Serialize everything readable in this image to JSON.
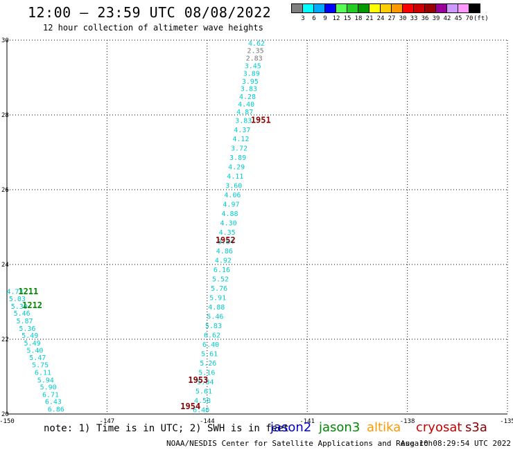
{
  "header": {
    "title": "12:00 – 23:59 UTC 08/08/2022",
    "subtitle": "12 hour collection of altimeter wave heights"
  },
  "legend": {
    "unit": "(ft)",
    "colors": [
      "#7f7f7f",
      "#00ffff",
      "#00aaff",
      "#0000ff",
      "#55ff55",
      "#22cc22",
      "#009900",
      "#ffff00",
      "#ffcc00",
      "#ff9900",
      "#ff0000",
      "#cc0000",
      "#990000",
      "#990099",
      "#cc99ff",
      "#ff99ff",
      "#000000"
    ],
    "labels": [
      "3",
      "6",
      "9",
      "12",
      "15",
      "18",
      "21",
      "24",
      "27",
      "30",
      "33",
      "36",
      "39",
      "42",
      "45",
      "70"
    ]
  },
  "chart_data": {
    "type": "scatter",
    "title": "12:00 – 23:59 UTC 08/08/2022",
    "subtitle": "12 hour collection of altimeter wave heights",
    "xlim": [
      -150,
      -135
    ],
    "ylim": [
      20,
      30
    ],
    "x_ticks": [
      "-150",
      "-147",
      "-144",
      "-141",
      "-138",
      "-135"
    ],
    "y_ticks": [
      "30",
      "28",
      "26",
      "24",
      "22",
      "20"
    ],
    "grid": true,
    "series": [
      {
        "name": "jason3",
        "color": "#00cccc",
        "points": [
          {
            "x": -149.76,
            "y": 23.29,
            "v": "4.73"
          },
          {
            "x": -149.69,
            "y": 23.09,
            "v": "5.03"
          },
          {
            "x": -149.63,
            "y": 22.89,
            "v": "5.30"
          },
          {
            "x": -149.55,
            "y": 22.7,
            "v": "5.46"
          },
          {
            "x": -149.47,
            "y": 22.5,
            "v": "5.87"
          },
          {
            "x": -149.39,
            "y": 22.3,
            "v": "5.36"
          },
          {
            "x": -149.31,
            "y": 22.11,
            "v": "5.49"
          },
          {
            "x": -149.24,
            "y": 21.91,
            "v": "5.49"
          },
          {
            "x": -149.16,
            "y": 21.71,
            "v": "5.40"
          },
          {
            "x": -149.08,
            "y": 21.52,
            "v": "5.47"
          },
          {
            "x": -149.0,
            "y": 21.32,
            "v": "5.75"
          },
          {
            "x": -148.92,
            "y": 21.12,
            "v": "6.11"
          },
          {
            "x": -148.84,
            "y": 20.92,
            "v": "5.94"
          },
          {
            "x": -148.76,
            "y": 20.73,
            "v": "5.90"
          },
          {
            "x": -148.69,
            "y": 20.53,
            "v": "6.71"
          },
          {
            "x": -148.61,
            "y": 20.34,
            "v": "6.43"
          },
          {
            "x": -148.53,
            "y": 20.14,
            "v": "6.86"
          }
        ]
      },
      {
        "name": "cryosat",
        "color": "#00cccc",
        "points": [
          {
            "x": -142.52,
            "y": 29.93,
            "v": "4.62"
          },
          {
            "x": -142.55,
            "y": 29.73,
            "v": "2.35"
          },
          {
            "x": -142.59,
            "y": 29.53,
            "v": "2.83"
          },
          {
            "x": -142.63,
            "y": 29.32,
            "v": "3.45"
          },
          {
            "x": -142.67,
            "y": 29.12,
            "v": "3.89"
          },
          {
            "x": -142.71,
            "y": 28.91,
            "v": "3.95"
          },
          {
            "x": -142.75,
            "y": 28.71,
            "v": "3.83"
          },
          {
            "x": -142.79,
            "y": 28.5,
            "v": "4.28"
          },
          {
            "x": -142.83,
            "y": 28.3,
            "v": "4.40"
          },
          {
            "x": -142.87,
            "y": 28.09,
            "v": "4.87"
          },
          {
            "x": -142.91,
            "y": 27.86,
            "v": "3.83"
          },
          {
            "x": -142.95,
            "y": 27.61,
            "v": "4.37"
          },
          {
            "x": -142.99,
            "y": 27.37,
            "v": "4.12"
          },
          {
            "x": -143.04,
            "y": 27.12,
            "v": "3.72"
          },
          {
            "x": -143.08,
            "y": 26.87,
            "v": "3.89"
          },
          {
            "x": -143.12,
            "y": 26.62,
            "v": "4.29"
          },
          {
            "x": -143.16,
            "y": 26.37,
            "v": "4.11"
          },
          {
            "x": -143.2,
            "y": 26.12,
            "v": "3.60"
          },
          {
            "x": -143.24,
            "y": 25.87,
            "v": "4.06"
          },
          {
            "x": -143.28,
            "y": 25.62,
            "v": "4.97"
          },
          {
            "x": -143.32,
            "y": 25.37,
            "v": "4.88"
          },
          {
            "x": -143.36,
            "y": 25.12,
            "v": "4.30"
          },
          {
            "x": -143.4,
            "y": 24.87,
            "v": "4.35"
          },
          {
            "x": -143.44,
            "y": 24.62,
            "v": "3.84"
          },
          {
            "x": -143.48,
            "y": 24.37,
            "v": "4.86"
          },
          {
            "x": -143.52,
            "y": 24.12,
            "v": "4.92"
          },
          {
            "x": -143.56,
            "y": 23.87,
            "v": "6.16"
          },
          {
            "x": -143.6,
            "y": 23.62,
            "v": "5.52"
          },
          {
            "x": -143.64,
            "y": 23.37,
            "v": "5.76"
          },
          {
            "x": -143.68,
            "y": 23.12,
            "v": "5.91"
          },
          {
            "x": -143.72,
            "y": 22.87,
            "v": "4.88"
          },
          {
            "x": -143.76,
            "y": 22.62,
            "v": "5.46"
          },
          {
            "x": -143.81,
            "y": 22.37,
            "v": "5.83"
          },
          {
            "x": -143.85,
            "y": 22.12,
            "v": "6.62"
          },
          {
            "x": -143.89,
            "y": 21.87,
            "v": "6.40"
          },
          {
            "x": -143.93,
            "y": 21.62,
            "v": "5.61"
          },
          {
            "x": -143.97,
            "y": 21.37,
            "v": "5.26"
          },
          {
            "x": -144.01,
            "y": 21.12,
            "v": "5.16"
          },
          {
            "x": -144.05,
            "y": 20.87,
            "v": "5.84"
          },
          {
            "x": -144.1,
            "y": 20.62,
            "v": "5.61"
          },
          {
            "x": -144.14,
            "y": 20.37,
            "v": "4.58"
          },
          {
            "x": -144.18,
            "y": 20.12,
            "v": "6.40"
          }
        ]
      }
    ],
    "time_labels": [
      {
        "x": -149.36,
        "y": 23.3,
        "text": "1211",
        "color": "#008800"
      },
      {
        "x": -149.24,
        "y": 22.93,
        "text": "1212",
        "color": "#008800"
      },
      {
        "x": -142.39,
        "y": 27.88,
        "text": "1951",
        "color": "#880000"
      },
      {
        "x": -143.45,
        "y": 24.67,
        "text": "1952",
        "color": "#880000"
      },
      {
        "x": -144.27,
        "y": 20.93,
        "text": "1953",
        "color": "#880000"
      },
      {
        "x": -144.5,
        "y": 20.22,
        "text": "1954",
        "color": "#880000"
      }
    ]
  },
  "notes": {
    "note": "note:  1) Time is in UTC; 2) SWH is in feet",
    "satellites": [
      {
        "name": "jason2",
        "color": "#0000cc"
      },
      {
        "name": "jason3",
        "color": "#008800"
      },
      {
        "name": "altika",
        "color": "#ff9900"
      },
      {
        "name": "cryosat",
        "color": "#cc0000"
      },
      {
        "name": "s3a",
        "color": "#880000"
      }
    ],
    "credit": "NOAA/NESDIS Center for Satellite Applications and Research",
    "timestamp": "Aug 10 08:29:54 UTC 2022"
  }
}
